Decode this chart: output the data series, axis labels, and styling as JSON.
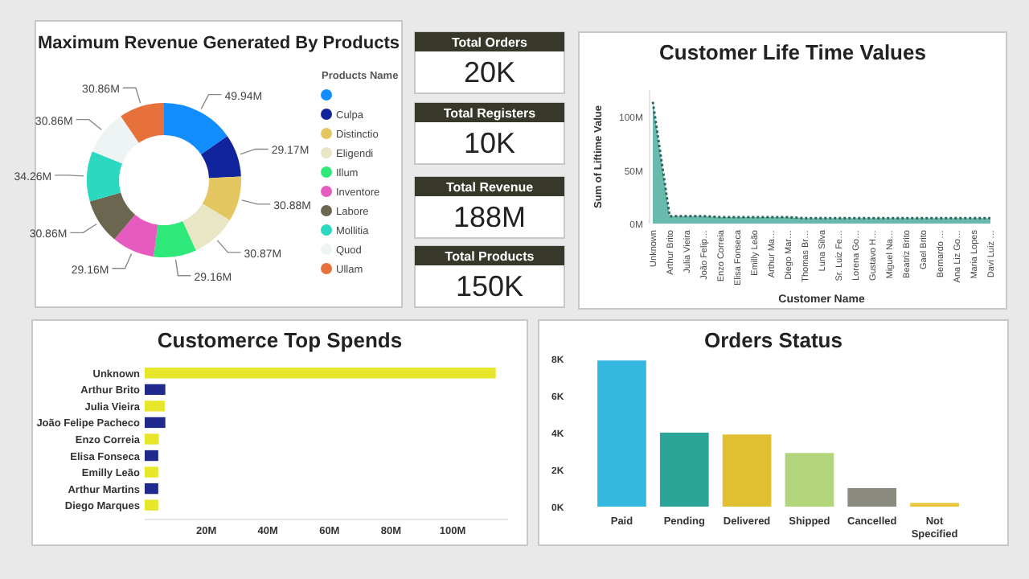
{
  "chart_data": [
    {
      "type": "donut",
      "title": "Maximum Revenue Generated By Products",
      "legend_title": "Products Name",
      "legend": "right",
      "categories": [
        null,
        "Culpa",
        "Distinctio",
        "Eligendi",
        "Illum",
        "Inventore",
        "Labore",
        "Mollitia",
        "Quod",
        "Ullam"
      ],
      "values": [
        49.94,
        29.17,
        30.88,
        30.87,
        29.16,
        29.16,
        30.86,
        34.26,
        30.86,
        30.86
      ],
      "value_labels": [
        "49.94M",
        "29.17M",
        "30.88M",
        "30.87M",
        "29.16M",
        "29.16M",
        "30.86M",
        "34.26M",
        "30.86M",
        "30.86M"
      ],
      "colors": [
        "#118dff",
        "#12239e",
        "#e3c65f",
        "#e8e6c4",
        "#2ee87a",
        "#e55bc0",
        "#6b6650",
        "#2ad9c0",
        "#eef3f4",
        "#e6713a"
      ]
    },
    {
      "type": "other",
      "title": "Total Orders",
      "annotations": [
        "20K"
      ]
    },
    {
      "type": "other",
      "title": "Total Registers",
      "annotations": [
        "10K"
      ]
    },
    {
      "type": "other",
      "title": "Total Revenue",
      "annotations": [
        "188M"
      ]
    },
    {
      "type": "other",
      "title": "Total Products",
      "annotations": [
        "150K"
      ]
    },
    {
      "type": "area",
      "title": "Customer Life Time Values",
      "xlabel": "Customer Name",
      "ylabel": "Sum of Liftime Value",
      "line_style": "dotted",
      "color": "#4fae9f",
      "categories": [
        "Unknown",
        "Arthur Brito",
        "Julia Vieira",
        "João Felip…",
        "Enzo Correia",
        "Elisa Fonseca",
        "Emilly Leão",
        "Arthur Ma…",
        "Diego Mar…",
        "Thomas Br…",
        "Luna Silva",
        "Sr. Luiz Fe…",
        "Lorena Go…",
        "Gustavo H…",
        "Miguel Na…",
        "Beatriz Brito",
        "Gael Brito",
        "Bernardo …",
        "Ana Liz Go…",
        "Maria Lopes",
        "Davi Luiz …"
      ],
      "values": [
        114,
        7,
        7,
        7,
        6,
        6,
        6,
        6,
        6,
        5,
        5,
        5,
        5,
        5,
        5,
        5,
        5,
        5,
        5,
        5,
        5
      ],
      "ylim": [
        0,
        125
      ],
      "yticks": [
        {
          "value": 0,
          "label": "0M"
        },
        {
          "value": 50,
          "label": "50M"
        },
        {
          "value": 100,
          "label": "100M"
        }
      ]
    },
    {
      "type": "bar",
      "orientation": "horizontal",
      "title": "Customerce Top Spends",
      "categories": [
        "Unknown",
        "Arthur Brito",
        "Julia Vieira",
        "João Felipe Pacheco",
        "Enzo Correia",
        "Elisa Fonseca",
        "Emilly Leão",
        "Arthur Martins",
        "Diego Marques"
      ],
      "values": [
        114,
        6.7,
        6.5,
        6.7,
        4.6,
        4.4,
        4.4,
        4.4,
        4.4
      ],
      "colors": [
        "#e8e62a",
        "#1f2a8c",
        "#e8e62a",
        "#1f2a8c",
        "#e8e62a",
        "#1f2a8c",
        "#e8e62a",
        "#1f2a8c",
        "#e8e62a"
      ],
      "xlim": [
        0,
        118
      ],
      "xticks": [
        {
          "value": 20,
          "label": "20M"
        },
        {
          "value": 40,
          "label": "40M"
        },
        {
          "value": 60,
          "label": "60M"
        },
        {
          "value": 80,
          "label": "80M"
        },
        {
          "value": 100,
          "label": "100M"
        }
      ]
    },
    {
      "type": "bar",
      "title": "Orders Status",
      "categories": [
        "Paid",
        "Pending",
        "Delivered",
        "Shipped",
        "Cancelled",
        "Not Specified"
      ],
      "values": [
        7.9,
        4,
        3.9,
        2.9,
        1.0,
        0.2
      ],
      "colors": [
        "#35b8e0",
        "#2aa597",
        "#e0c030",
        "#b2d47a",
        "#8a8a7e",
        "#e8c53a"
      ],
      "ylim": [
        0,
        8
      ],
      "yticks": [
        {
          "value": 0,
          "label": "0K"
        },
        {
          "value": 2,
          "label": "2K"
        },
        {
          "value": 4,
          "label": "4K"
        },
        {
          "value": 6,
          "label": "6K"
        },
        {
          "value": 8,
          "label": "8K"
        }
      ]
    }
  ]
}
